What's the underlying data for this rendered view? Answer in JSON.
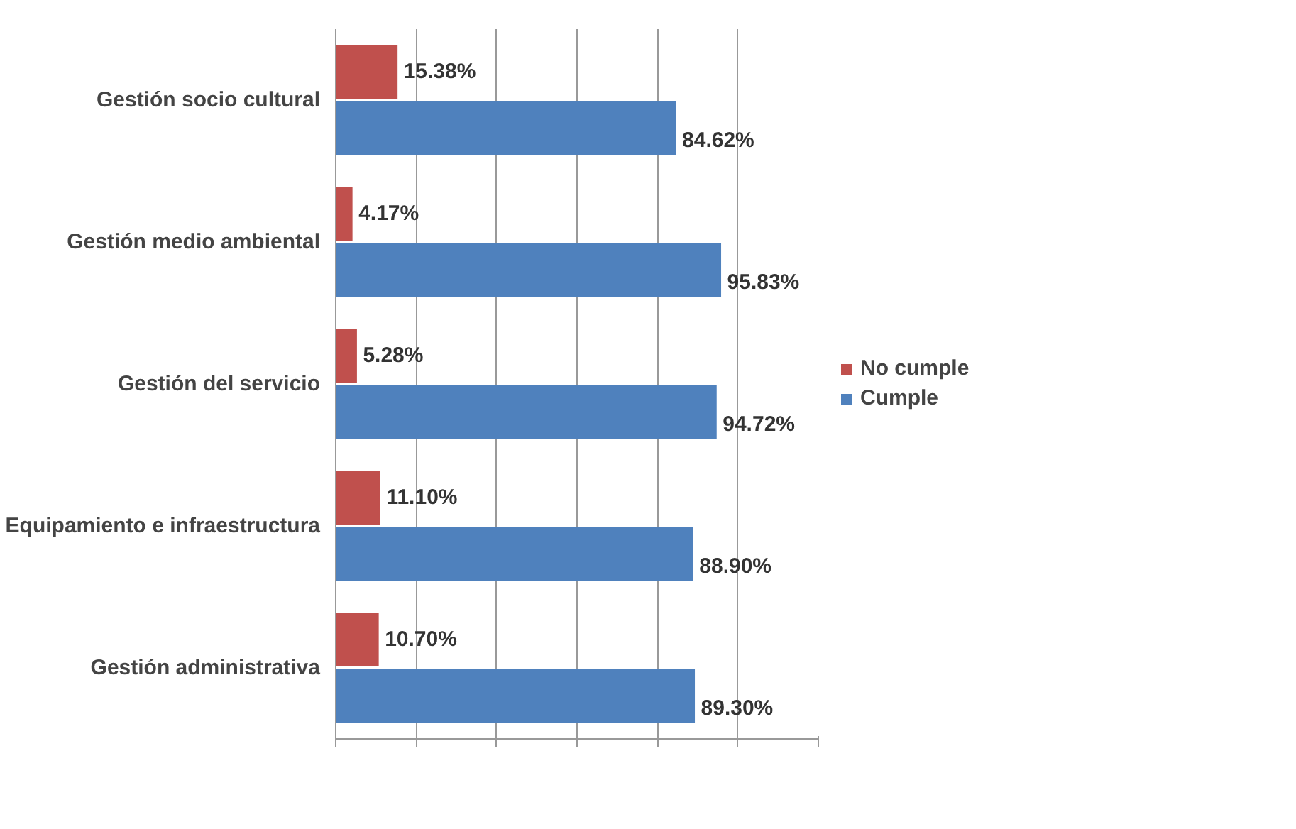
{
  "chart_data": {
    "type": "bar",
    "orientation": "horizontal",
    "categories": [
      "Gestión socio cultural",
      "Gestión medio ambiental",
      "Gestión del servicio",
      "Equipamiento e infraestructura",
      "Gestión administrativa"
    ],
    "series": [
      {
        "name": "No cumple",
        "color": "#c0504d",
        "values": [
          15.38,
          4.17,
          5.28,
          11.1,
          10.7
        ],
        "value_labels": [
          "15.38%",
          "4.17%",
          "5.28%",
          "11.10%",
          "10.70%"
        ]
      },
      {
        "name": "Cumple",
        "color": "#4f81bd",
        "values": [
          84.62,
          95.83,
          94.72,
          88.9,
          89.3
        ],
        "value_labels": [
          "84.62%",
          "95.83%",
          "94.72%",
          "88.90%",
          "89.30%"
        ]
      }
    ],
    "xlim": [
      0,
      120
    ],
    "xticks": [
      {
        "value": 0,
        "label": null
      },
      {
        "value": 20,
        "label": null
      },
      {
        "value": 40,
        "label": null
      },
      {
        "value": 60,
        "label": null
      },
      {
        "value": 80,
        "label": null
      },
      {
        "value": 100,
        "label": null
      },
      {
        "value": 120,
        "label": null
      }
    ],
    "grid": "x",
    "legend": "right",
    "tick_labels": "y"
  }
}
